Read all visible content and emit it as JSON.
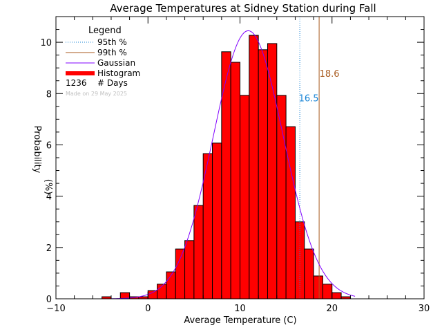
{
  "chart_data": {
    "type": "bar",
    "title": "Average Temperatures at Sidney Station during Fall",
    "xlabel": "Average Temperature (C)",
    "ylabel": "Probability",
    "ylabel_unit": "(%)",
    "xlim": [
      -10,
      30
    ],
    "ylim": [
      0,
      11
    ],
    "x_ticks": [
      -10,
      0,
      10,
      20,
      30
    ],
    "x_tick_labels": [
      "−10",
      "0",
      "10",
      "20",
      "30"
    ],
    "y_ticks": [
      0,
      2,
      4,
      6,
      8,
      10
    ],
    "y_tick_labels": [
      "0",
      "2",
      "4",
      "6",
      "8",
      "10"
    ],
    "bin_width": 1,
    "bins": [
      {
        "x0": -5,
        "value": 0.08
      },
      {
        "x0": -3,
        "value": 0.24
      },
      {
        "x0": -2,
        "value": 0.08
      },
      {
        "x0": -1,
        "value": 0.08
      },
      {
        "x0": 0,
        "value": 0.32
      },
      {
        "x0": 1,
        "value": 0.57
      },
      {
        "x0": 2,
        "value": 1.05
      },
      {
        "x0": 3,
        "value": 1.94
      },
      {
        "x0": 4,
        "value": 2.27
      },
      {
        "x0": 5,
        "value": 3.64
      },
      {
        "x0": 6,
        "value": 5.66
      },
      {
        "x0": 7,
        "value": 6.07
      },
      {
        "x0": 8,
        "value": 9.63
      },
      {
        "x0": 9,
        "value": 9.22
      },
      {
        "x0": 10,
        "value": 7.93
      },
      {
        "x0": 11,
        "value": 10.27
      },
      {
        "x0": 12,
        "value": 9.71
      },
      {
        "x0": 13,
        "value": 9.95
      },
      {
        "x0": 14,
        "value": 7.93
      },
      {
        "x0": 15,
        "value": 6.71
      },
      {
        "x0": 16,
        "value": 3.0
      },
      {
        "x0": 17,
        "value": 1.94
      },
      {
        "x0": 18,
        "value": 0.89
      },
      {
        "x0": 19,
        "value": 0.57
      },
      {
        "x0": 20,
        "value": 0.24
      },
      {
        "x0": 21,
        "value": 0.08
      }
    ],
    "gaussian": {
      "mean": 10.9,
      "sd": 3.8,
      "peak": 10.45,
      "x_range": [
        -4,
        22.5
      ],
      "color": "#8000ff"
    },
    "percentile_95": {
      "value": 16.5,
      "label": "16.5",
      "color": "#1a85d6"
    },
    "percentile_99": {
      "value": 18.6,
      "label": "18.6",
      "color": "#a85a1e"
    },
    "histogram_color": "#ff0000",
    "legend": {
      "title": "Legend",
      "placement": "top-left",
      "items": [
        {
          "label": "95th %",
          "style": "dotted",
          "color": "#1a85d6"
        },
        {
          "label": "99th %",
          "style": "solid",
          "color": "#a85a1e"
        },
        {
          "label": "Gaussian",
          "style": "solid",
          "color": "#8000ff"
        },
        {
          "label": "Histogram",
          "style": "thick",
          "color": "#ff0000"
        }
      ],
      "count_value": "1236",
      "count_label": "# Days",
      "made_on": "Made on 29 May 2025"
    },
    "grid": false
  }
}
